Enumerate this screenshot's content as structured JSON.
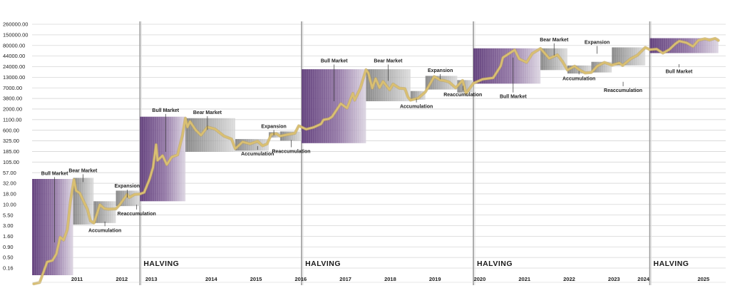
{
  "chart_data": {
    "type": "line",
    "title": "",
    "xlabel": "",
    "ylabel": "",
    "y_scale": "log",
    "ylim": [
      0.1,
      300000
    ],
    "xlim": [
      "2010-07-01",
      "2025-12-31"
    ],
    "grid": true,
    "y_ticks": [
      "0.16",
      "0.50",
      "0.90",
      "1.60",
      "3.00",
      "5.50",
      "10.00",
      "18.00",
      "32.00",
      "57.00",
      "105.00",
      "185.00",
      "325.00",
      "600.00",
      "1100.00",
      "2000.00",
      "3800.00",
      "7000.00",
      "13000.00",
      "24000.00",
      "44000.00",
      "80000.00",
      "150000.00",
      "260000.00"
    ],
    "year_labels": [
      "2011",
      "2012",
      "2013",
      "2014",
      "2015",
      "2016",
      "2017",
      "2018",
      "2019",
      "2020",
      "2021",
      "2022",
      "2023",
      "2024",
      "2025"
    ],
    "halving_label": "HALVING",
    "halvings": [
      "2012-11-28",
      "2016-07-09",
      "2020-05-11",
      "2024-04-20"
    ],
    "colors": {
      "price_line": "#d9bf72",
      "bull_box": "#6b4a82",
      "bear_box": "#8a8a8a",
      "halving_line": "#9a9a9a",
      "grid": "#d6d6d6"
    },
    "series": [
      {
        "points": [
          [
            "2010-07-15",
            0.06
          ],
          [
            "2010-09-01",
            0.065
          ],
          [
            "2010-11-01",
            0.22
          ],
          [
            "2010-12-15",
            0.24
          ],
          [
            "2011-01-15",
            0.35
          ],
          [
            "2011-02-15",
            0.95
          ],
          [
            "2011-03-15",
            0.8
          ],
          [
            "2011-04-15",
            1.5
          ],
          [
            "2011-05-10",
            8
          ],
          [
            "2011-06-08",
            29
          ],
          [
            "2011-06-25",
            15
          ],
          [
            "2011-07-25",
            13
          ],
          [
            "2011-08-25",
            8
          ],
          [
            "2011-09-25",
            5
          ],
          [
            "2011-10-20",
            2.5
          ],
          [
            "2011-11-18",
            2.2
          ],
          [
            "2012-01-05",
            6.5
          ],
          [
            "2012-02-10",
            5.2
          ],
          [
            "2012-03-15",
            5
          ],
          [
            "2012-05-15",
            5.1
          ],
          [
            "2012-06-15",
            6.5
          ],
          [
            "2012-08-15",
            12
          ],
          [
            "2012-09-01",
            10
          ],
          [
            "2012-10-15",
            12
          ],
          [
            "2012-11-28",
            12.3
          ],
          [
            "2013-01-01",
            13.5
          ],
          [
            "2013-02-15",
            30
          ],
          [
            "2013-03-15",
            60
          ],
          [
            "2013-04-09",
            230
          ],
          [
            "2013-04-20",
            90
          ],
          [
            "2013-06-01",
            120
          ],
          [
            "2013-07-05",
            70
          ],
          [
            "2013-08-15",
            110
          ],
          [
            "2013-10-01",
            125
          ],
          [
            "2013-11-10",
            400
          ],
          [
            "2013-12-04",
            1100
          ],
          [
            "2013-12-20",
            650
          ],
          [
            "2014-01-10",
            900
          ],
          [
            "2014-02-25",
            550
          ],
          [
            "2014-04-10",
            400
          ],
          [
            "2014-06-01",
            650
          ],
          [
            "2014-08-01",
            580
          ],
          [
            "2014-09-15",
            450
          ],
          [
            "2014-10-15",
            380
          ],
          [
            "2014-12-15",
            320
          ],
          [
            "2015-01-14",
            180
          ],
          [
            "2015-03-15",
            270
          ],
          [
            "2015-05-15",
            240
          ],
          [
            "2015-07-15",
            280
          ],
          [
            "2015-08-25",
            215
          ],
          [
            "2015-10-01",
            240
          ],
          [
            "2015-11-04",
            420
          ],
          [
            "2015-12-15",
            440
          ],
          [
            "2016-01-15",
            380
          ],
          [
            "2016-03-15",
            415
          ],
          [
            "2016-05-15",
            450
          ],
          [
            "2016-06-16",
            700
          ],
          [
            "2016-07-09",
            650
          ],
          [
            "2016-08-15",
            570
          ],
          [
            "2016-10-15",
            640
          ],
          [
            "2016-12-15",
            780
          ],
          [
            "2017-01-05",
            1000
          ],
          [
            "2017-02-15",
            1050
          ],
          [
            "2017-03-15",
            1200
          ],
          [
            "2017-05-25",
            2600
          ],
          [
            "2017-07-15",
            2000
          ],
          [
            "2017-09-01",
            4800
          ],
          [
            "2017-09-15",
            3200
          ],
          [
            "2017-11-01",
            6500
          ],
          [
            "2017-12-17",
            19500
          ],
          [
            "2018-01-05",
            16000
          ],
          [
            "2018-02-06",
            6500
          ],
          [
            "2018-03-05",
            11500
          ],
          [
            "2018-04-06",
            6700
          ],
          [
            "2018-05-05",
            9700
          ],
          [
            "2018-06-28",
            5900
          ],
          [
            "2018-07-25",
            8300
          ],
          [
            "2018-09-15",
            6500
          ],
          [
            "2018-10-30",
            6300
          ],
          [
            "2018-11-25",
            3800
          ],
          [
            "2018-12-15",
            3200
          ],
          [
            "2019-02-15",
            3600
          ],
          [
            "2019-04-15",
            5200
          ],
          [
            "2019-06-26",
            13000
          ],
          [
            "2019-08-15",
            10500
          ],
          [
            "2019-09-15",
            10200
          ],
          [
            "2019-10-25",
            9400
          ],
          [
            "2019-12-18",
            6600
          ],
          [
            "2020-02-12",
            10300
          ],
          [
            "2020-03-13",
            4800
          ],
          [
            "2020-05-11",
            8700
          ],
          [
            "2020-07-25",
            11000
          ],
          [
            "2020-10-20",
            12000
          ],
          [
            "2020-12-20",
            24000
          ],
          [
            "2021-01-08",
            40000
          ],
          [
            "2021-02-15",
            48000
          ],
          [
            "2021-04-14",
            63000
          ],
          [
            "2021-05-20",
            37000
          ],
          [
            "2021-07-20",
            30000
          ],
          [
            "2021-09-05",
            51000
          ],
          [
            "2021-11-10",
            68000
          ],
          [
            "2022-01-20",
            38000
          ],
          [
            "2022-03-28",
            47000
          ],
          [
            "2022-05-10",
            31000
          ],
          [
            "2022-06-18",
            19000
          ],
          [
            "2022-08-15",
            24000
          ],
          [
            "2022-09-15",
            20000
          ],
          [
            "2022-11-09",
            16000
          ],
          [
            "2022-12-30",
            16500
          ],
          [
            "2023-02-15",
            24000
          ],
          [
            "2023-04-15",
            30000
          ],
          [
            "2023-06-15",
            25500
          ],
          [
            "2023-08-15",
            29000
          ],
          [
            "2023-09-11",
            25000
          ],
          [
            "2023-11-15",
            37000
          ],
          [
            "2024-01-10",
            46000
          ],
          [
            "2024-03-14",
            73000
          ],
          [
            "2024-04-20",
            64000
          ],
          [
            "2024-06-15",
            66000
          ],
          [
            "2024-08-05",
            52000
          ],
          [
            "2024-09-25",
            64000
          ],
          [
            "2024-11-15",
            90000
          ],
          [
            "2024-12-17",
            106000
          ],
          [
            "2025-02-15",
            96000
          ],
          [
            "2025-04-08",
            77000
          ],
          [
            "2025-05-22",
            111000
          ],
          [
            "2025-07-14",
            122000
          ],
          [
            "2025-08-20",
            113000
          ],
          [
            "2025-10-06",
            124000
          ],
          [
            "2025-11-01",
            110000
          ]
        ]
      }
    ],
    "phases": [
      {
        "kind": "bull",
        "x0": "2010-07-01",
        "x1": "2011-06-01",
        "y0": 0.1,
        "y1": 30
      },
      {
        "kind": "bear",
        "x0": "2011-06-01",
        "x1": "2011-11-15",
        "y0": 2,
        "y1": 32
      },
      {
        "kind": "bear",
        "x0": "2011-11-15",
        "x1": "2012-05-15",
        "y0": 2.2,
        "y1": 8
      },
      {
        "kind": "bear",
        "x0": "2012-05-15",
        "x1": "2012-11-28",
        "y0": 6,
        "y1": 15
      },
      {
        "kind": "bull",
        "x0": "2012-11-28",
        "x1": "2013-12-04",
        "y0": 8,
        "y1": 1200
      },
      {
        "kind": "bear",
        "x0": "2013-12-04",
        "x1": "2015-01-14",
        "y0": 150,
        "y1": 1100
      },
      {
        "kind": "bear",
        "x0": "2015-01-14",
        "x1": "2015-10-15",
        "y0": 160,
        "y1": 320
      },
      {
        "kind": "bear",
        "x0": "2015-10-15",
        "x1": "2016-01-15",
        "y0": 350,
        "y1": 480
      },
      {
        "kind": "bear",
        "x0": "2016-01-15",
        "x1": "2016-07-09",
        "y0": 290,
        "y1": 500
      },
      {
        "kind": "bull",
        "x0": "2016-07-09",
        "x1": "2017-12-17",
        "y0": 250,
        "y1": 20000
      },
      {
        "kind": "bear",
        "x0": "2017-12-17",
        "x1": "2018-12-15",
        "y0": 3000,
        "y1": 20000
      },
      {
        "kind": "bear",
        "x0": "2018-12-15",
        "x1": "2019-04-15",
        "y0": 3300,
        "y1": 5500
      },
      {
        "kind": "bear",
        "x0": "2019-04-15",
        "x1": "2019-12-31",
        "y0": 6000,
        "y1": 13500
      },
      {
        "kind": "bear",
        "x0": "2019-12-31",
        "x1": "2020-05-11",
        "y0": 5000,
        "y1": 10500
      },
      {
        "kind": "bull",
        "x0": "2020-05-11",
        "x1": "2021-11-10",
        "y0": 8500,
        "y1": 69000
      },
      {
        "kind": "bear",
        "x0": "2021-11-10",
        "x1": "2022-06-18",
        "y0": 19000,
        "y1": 69000
      },
      {
        "kind": "bear",
        "x0": "2022-06-18",
        "x1": "2022-12-30",
        "y0": 15500,
        "y1": 25000
      },
      {
        "kind": "bear",
        "x0": "2022-12-30",
        "x1": "2023-06-15",
        "y0": 16500,
        "y1": 31000
      },
      {
        "kind": "bear",
        "x0": "2023-06-15",
        "x1": "2024-03-14",
        "y0": 25000,
        "y1": 73000
      },
      {
        "kind": "bull",
        "x0": "2024-04-20",
        "x1": "2025-11-01",
        "y0": 52000,
        "y1": 126000
      }
    ],
    "annotations": [
      {
        "text": "Bull Market",
        "x": "2011-01-01",
        "y": 38,
        "anchor_y": 0.7,
        "pos": "above"
      },
      {
        "text": "Bear Market",
        "x": "2011-08-20",
        "y": 45,
        "anchor_y": 25,
        "pos": "above"
      },
      {
        "text": "Accumulation",
        "x": "2012-02-15",
        "y": 1.3,
        "anchor_y": 2.4,
        "pos": "below"
      },
      {
        "text": "Expansion",
        "x": "2012-08-15",
        "y": 18,
        "anchor_y": 10,
        "pos": "above"
      },
      {
        "text": "Reaccumulation",
        "x": "2012-11-01",
        "y": 3.5,
        "anchor_y": 6.5,
        "pos": "below"
      },
      {
        "text": "Bull Market",
        "x": "2013-06-25",
        "y": 1600,
        "anchor_y": 150,
        "pos": "above"
      },
      {
        "text": "Bear Market",
        "x": "2014-06-01",
        "y": 1400,
        "anchor_y": 550,
        "pos": "above"
      },
      {
        "text": "Accumulation",
        "x": "2015-07-15",
        "y": 120,
        "anchor_y": 210,
        "pos": "below"
      },
      {
        "text": "Expansion",
        "x": "2015-11-25",
        "y": 620,
        "anchor_y": 400,
        "pos": "above"
      },
      {
        "text": "Reaccumulation",
        "x": "2016-04-15",
        "y": 140,
        "anchor_y": 300,
        "pos": "below"
      },
      {
        "text": "Bull Market",
        "x": "2017-04-01",
        "y": 30000,
        "anchor_y": 3000,
        "pos": "above"
      },
      {
        "text": "Bear Market",
        "x": "2018-06-15",
        "y": 30000,
        "anchor_y": 10000,
        "pos": "above"
      },
      {
        "text": "Accumulation",
        "x": "2019-02-01",
        "y": 2000,
        "anchor_y": 3500,
        "pos": "below"
      },
      {
        "text": "Expansion",
        "x": "2019-08-15",
        "y": 17000,
        "anchor_y": 11000,
        "pos": "above"
      },
      {
        "text": "Reaccumulation",
        "x": "2020-02-15",
        "y": 4000,
        "anchor_y": 7500,
        "pos": "below"
      },
      {
        "text": "Bull Market",
        "x": "2021-04-01",
        "y": 3600,
        "anchor_y": 40000,
        "pos": "below"
      },
      {
        "text": "Bear Market",
        "x": "2022-03-01",
        "y": 105000,
        "anchor_y": 45000,
        "pos": "above"
      },
      {
        "text": "Accumulation",
        "x": "2022-09-20",
        "y": 10500,
        "anchor_y": 18000,
        "pos": "below"
      },
      {
        "text": "Expansion",
        "x": "2023-02-15",
        "y": 90000,
        "anchor_y": 50000,
        "pos": "above"
      },
      {
        "text": "Reaccumulation",
        "x": "2023-09-15",
        "y": 5200,
        "anchor_y": 9500,
        "pos": "below"
      },
      {
        "text": "Bull Market",
        "x": "2024-12-15",
        "y": 16000,
        "anchor_y": 27000,
        "pos": "below"
      }
    ]
  }
}
